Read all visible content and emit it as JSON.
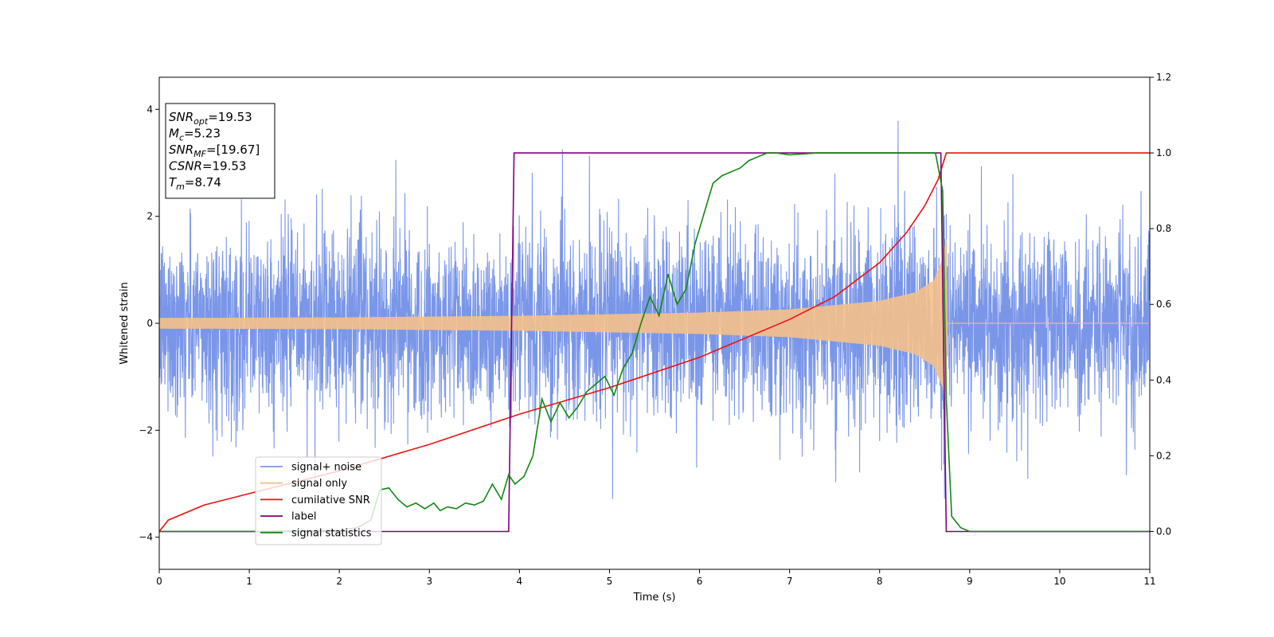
{
  "chart_data": {
    "type": "line",
    "xlabel": "Time (s)",
    "ylabel": "Whitened strain",
    "xlim": [
      0,
      11
    ],
    "ylim_left": [
      -4.6,
      4.6
    ],
    "ylim_right": [
      -0.1,
      1.2
    ],
    "x_ticks": [
      0,
      1,
      2,
      3,
      4,
      5,
      6,
      7,
      8,
      9,
      10,
      11
    ],
    "y_ticks_left": [
      -4,
      -2,
      0,
      2,
      4
    ],
    "y_ticks_right": [
      0.0,
      0.2,
      0.4,
      0.6,
      0.8,
      1.0,
      1.2
    ],
    "grid": false,
    "legend_position": "lower-left",
    "annotation": {
      "lines": [
        {
          "sym": "SNR",
          "sub": "opt",
          "text": "=19.53"
        },
        {
          "sym": "M",
          "sub": "c",
          "text": "=5.23"
        },
        {
          "sym": "SNR",
          "sub": "MF",
          "text": "=[19.67]"
        },
        {
          "sym": "CSNR",
          "sub": "",
          "text": "=19.53"
        },
        {
          "sym": "T",
          "sub": "m",
          "text": "=8.74"
        }
      ]
    },
    "series": [
      {
        "name": "signal+ noise",
        "axis": "left",
        "color": "#7a96e8",
        "description_values": {
          "noise_band": [
            -2.0,
            2.0
          ],
          "spikes_max": 4.15,
          "spikes_min": -4.2
        }
      },
      {
        "name": "signal only",
        "axis": "left",
        "color": "#f5c08a",
        "envelope": {
          "x": [
            0,
            2,
            4,
            6,
            7,
            8,
            8.4,
            8.6,
            8.7,
            8.74,
            8.75,
            11
          ],
          "amp": [
            0.1,
            0.11,
            0.14,
            0.2,
            0.26,
            0.42,
            0.58,
            0.8,
            1.2,
            1.6,
            0,
            0
          ]
        }
      },
      {
        "name": "cumilative SNR",
        "axis": "right",
        "color": "#ee1111",
        "x": [
          0,
          0.1,
          0.5,
          1,
          2,
          3,
          4,
          5,
          6,
          7,
          7.5,
          8,
          8.3,
          8.5,
          8.65,
          8.74,
          9,
          11
        ],
        "values": [
          0.0,
          0.03,
          0.07,
          0.1,
          0.16,
          0.23,
          0.31,
          0.38,
          0.46,
          0.56,
          0.62,
          0.71,
          0.79,
          0.86,
          0.93,
          1.0,
          1.0,
          1.0
        ]
      },
      {
        "name": "label",
        "axis": "right",
        "color": "#800080",
        "x": [
          0,
          3.88,
          3.94,
          8.68,
          8.74,
          11
        ],
        "values": [
          0,
          0,
          1,
          1,
          0,
          0
        ]
      },
      {
        "name": "signal statistics",
        "axis": "right",
        "color": "#118811",
        "x": [
          0,
          1,
          2,
          2.2,
          2.35,
          2.45,
          2.55,
          2.65,
          2.75,
          2.85,
          2.95,
          3.05,
          3.12,
          3.2,
          3.3,
          3.4,
          3.5,
          3.6,
          3.7,
          3.8,
          3.88,
          3.95,
          4.05,
          4.15,
          4.25,
          4.35,
          4.45,
          4.55,
          4.65,
          4.75,
          4.85,
          4.95,
          5.05,
          5.15,
          5.25,
          5.35,
          5.45,
          5.55,
          5.65,
          5.75,
          5.85,
          5.95,
          6.05,
          6.15,
          6.25,
          6.35,
          6.45,
          6.55,
          6.65,
          6.75,
          6.85,
          7.0,
          7.3,
          7.6,
          8.0,
          8.4,
          8.62,
          8.7,
          8.74,
          8.8,
          8.9,
          9.0,
          11
        ],
        "values": [
          0.0,
          0.0,
          0.003,
          0.01,
          0.03,
          0.11,
          0.115,
          0.085,
          0.065,
          0.075,
          0.06,
          0.075,
          0.055,
          0.065,
          0.06,
          0.075,
          0.07,
          0.08,
          0.125,
          0.085,
          0.15,
          0.125,
          0.145,
          0.2,
          0.35,
          0.29,
          0.34,
          0.3,
          0.33,
          0.37,
          0.39,
          0.41,
          0.36,
          0.43,
          0.47,
          0.55,
          0.62,
          0.57,
          0.68,
          0.6,
          0.64,
          0.76,
          0.84,
          0.92,
          0.94,
          0.95,
          0.96,
          0.98,
          0.99,
          1.0,
          1.0,
          0.995,
          1.0,
          1.0,
          1.0,
          1.0,
          1.0,
          0.9,
          0.35,
          0.04,
          0.01,
          0.0,
          0.0
        ]
      }
    ]
  }
}
